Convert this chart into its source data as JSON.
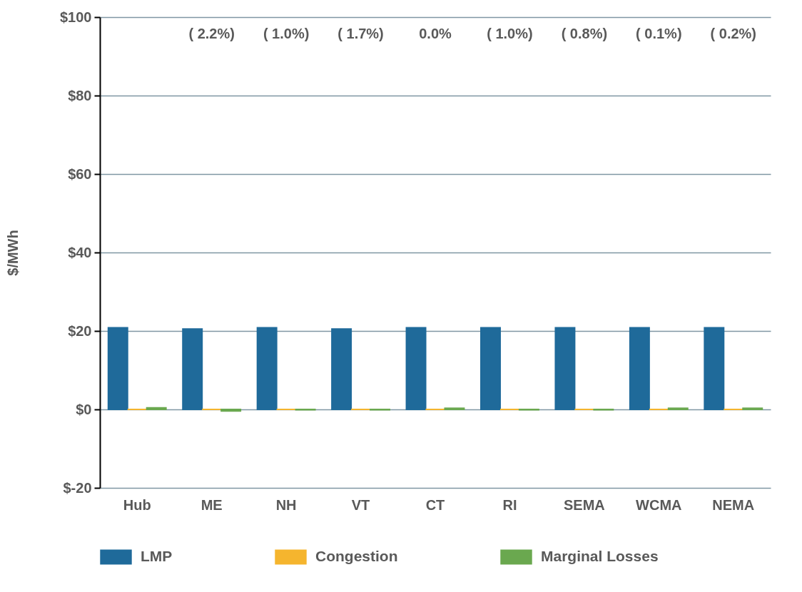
{
  "chart_data": {
    "type": "bar",
    "ylabel": "$/MWh",
    "categories": [
      "Hub",
      "ME",
      "NH",
      "VT",
      "CT",
      "RI",
      "SEMA",
      "WCMA",
      "NEMA"
    ],
    "series": [
      {
        "name": "LMP",
        "color": "#1f6a9a",
        "values": [
          20.8,
          20.5,
          20.8,
          20.5,
          20.8,
          20.8,
          20.8,
          20.8,
          20.8
        ]
      },
      {
        "name": "Congestion",
        "color": "#f5b52e",
        "values": [
          0,
          0,
          0,
          0,
          0,
          0,
          0,
          0,
          0
        ]
      },
      {
        "name": "Marginal Losses",
        "color": "#6aa84f",
        "values": [
          0.4,
          -0.4,
          -0.1,
          -0.1,
          0.3,
          -0.1,
          -0.1,
          0.3,
          0.3
        ]
      }
    ],
    "ylim": [
      -20,
      100
    ],
    "yticks": [
      {
        "value": -20,
        "label": "$-20"
      },
      {
        "value": 0,
        "label": "$0"
      },
      {
        "value": 20,
        "label": "$20"
      },
      {
        "value": 40,
        "label": "$40"
      },
      {
        "value": 60,
        "label": "$60"
      },
      {
        "value": 80,
        "label": "$80"
      },
      {
        "value": 100,
        "label": "$100"
      }
    ],
    "annotations": [
      "( 2.2%)",
      "( 1.0%)",
      "( 1.7%)",
      "0.0%",
      "( 1.0%)",
      "( 0.8%)",
      "( 0.1%)",
      "( 0.2%)"
    ],
    "grid": "y",
    "legend": "bottom"
  }
}
